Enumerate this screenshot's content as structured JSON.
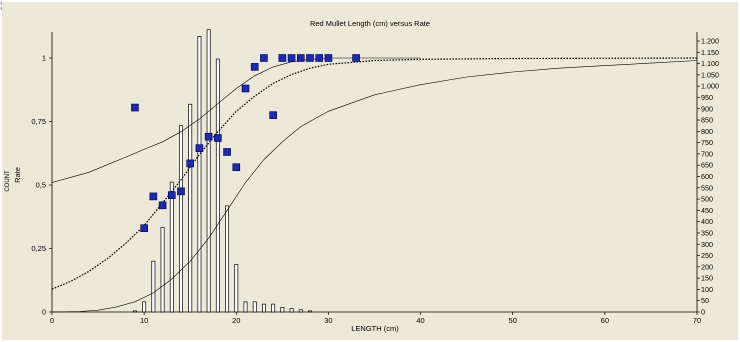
{
  "corner_mark": "¦",
  "clipped_label": "COUNT",
  "chart_data": {
    "type": "bar+scatter+line",
    "title": "Red Mullet Length (cm) versus Rate",
    "xlabel": "LENGTH (cm)",
    "ylabel": "Rate",
    "xlim": [
      0,
      70
    ],
    "ylim_left": [
      0,
      1.1
    ],
    "ylim_right": [
      0,
      1250
    ],
    "x_ticks": [
      0,
      10,
      20,
      30,
      40,
      50,
      60,
      70
    ],
    "x_tick_labels": [
      "0",
      "10",
      "20",
      "30",
      "40",
      "50",
      "60",
      "70"
    ],
    "y_left_ticks": [
      0,
      0.25,
      0.5,
      0.75,
      1
    ],
    "y_left_tick_labels": [
      "0",
      "0,25",
      "0,5",
      "0,75",
      "1"
    ],
    "y_right_ticks": [
      0,
      50,
      100,
      150,
      200,
      250,
      300,
      350,
      400,
      450,
      500,
      550,
      600,
      650,
      700,
      750,
      800,
      850,
      900,
      950,
      1000,
      1050,
      1100,
      1150,
      1200
    ],
    "y_right_tick_labels": [
      "0",
      "50",
      "100",
      "150",
      "200",
      "250",
      "300",
      "350",
      "400",
      "450",
      "500",
      "550",
      "600",
      "650",
      "700",
      "750",
      "800",
      "850",
      "900",
      "950",
      "1.000",
      "1.050",
      "1.100",
      "1.150",
      "1.200"
    ],
    "bars": {
      "axis": "right",
      "x": [
        9,
        10,
        11,
        12,
        13,
        14,
        15,
        16,
        17,
        18,
        19,
        20,
        21,
        22,
        23,
        24,
        25,
        26,
        27,
        28
      ],
      "values": [
        5,
        45,
        225,
        375,
        575,
        825,
        920,
        1220,
        1250,
        1120,
        470,
        210,
        45,
        45,
        35,
        35,
        20,
        15,
        10,
        5
      ]
    },
    "points": {
      "axis": "left",
      "x": [
        9,
        10,
        11,
        12,
        13,
        14,
        15,
        16,
        17,
        18,
        19,
        20,
        21,
        22,
        23,
        24,
        25,
        26,
        27,
        28,
        29,
        30,
        33
      ],
      "y": [
        0.805,
        0.33,
        0.455,
        0.42,
        0.46,
        0.475,
        0.585,
        0.645,
        0.69,
        0.685,
        0.63,
        0.57,
        0.88,
        0.965,
        1.0,
        0.775,
        1.0,
        1.0,
        1.0,
        1.0,
        1.0,
        1.0,
        1.0
      ]
    },
    "curves": [
      {
        "style": "dotted",
        "axis": "left",
        "x": [
          0,
          2,
          4,
          6,
          8,
          10,
          12,
          14,
          16,
          18,
          20,
          22,
          24,
          26,
          28,
          30,
          35,
          40,
          50,
          60,
          70
        ],
        "y": [
          0.09,
          0.12,
          0.16,
          0.21,
          0.27,
          0.34,
          0.43,
          0.52,
          0.62,
          0.71,
          0.79,
          0.85,
          0.9,
          0.935,
          0.96,
          0.975,
          0.99,
          0.995,
          0.998,
          0.999,
          1.0
        ]
      },
      {
        "style": "solid",
        "axis": "left",
        "x": [
          0,
          2,
          4,
          6,
          8,
          10,
          12,
          14,
          16,
          18,
          20,
          22,
          24,
          26,
          28,
          30,
          35,
          40
        ],
        "y": [
          0.51,
          0.53,
          0.55,
          0.58,
          0.61,
          0.64,
          0.67,
          0.71,
          0.76,
          0.82,
          0.88,
          0.93,
          0.965,
          0.985,
          0.995,
          1.0,
          1.0,
          1.0
        ]
      },
      {
        "style": "solid",
        "axis": "left",
        "x": [
          0,
          3,
          5,
          7,
          9,
          11,
          13,
          15,
          17,
          19,
          21,
          23,
          25,
          27,
          30,
          35,
          40,
          45,
          50,
          55,
          60,
          65,
          70
        ],
        "y": [
          0.0,
          0.002,
          0.007,
          0.02,
          0.04,
          0.075,
          0.13,
          0.2,
          0.29,
          0.4,
          0.51,
          0.6,
          0.67,
          0.73,
          0.79,
          0.855,
          0.895,
          0.925,
          0.945,
          0.96,
          0.97,
          0.98,
          0.99
        ]
      }
    ]
  }
}
